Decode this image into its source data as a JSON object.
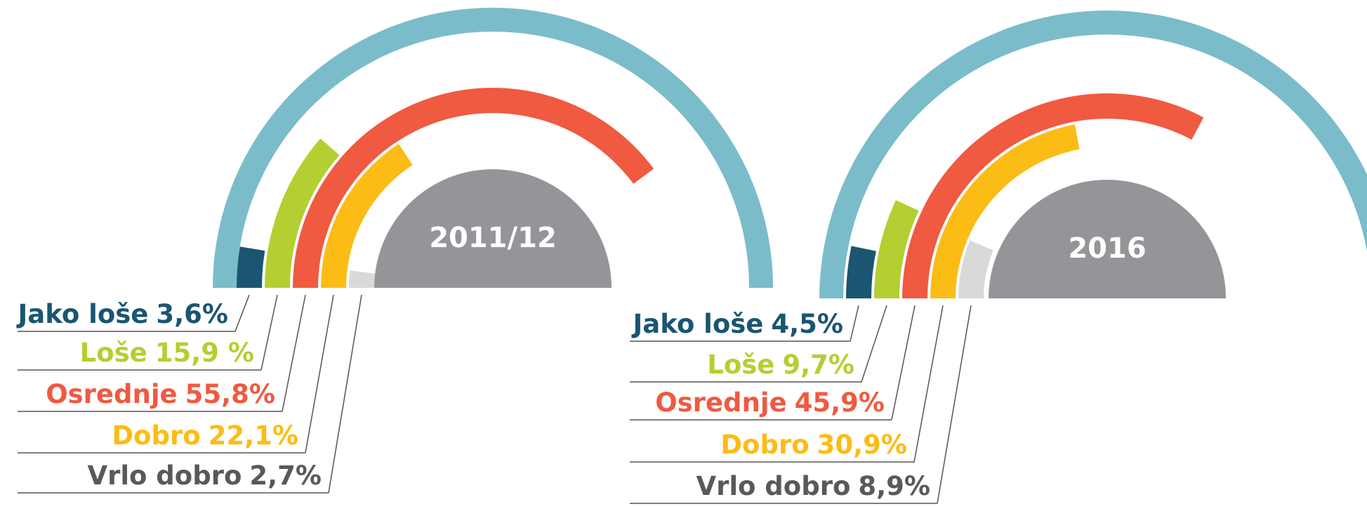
{
  "chart_data": [
    {
      "type": "radial_bar",
      "title": "2011/12",
      "categories": [
        "Jako loše",
        "Loše",
        "Osrednje",
        "Dobro",
        "Vrlo dobro"
      ],
      "values": [
        3.6,
        15.9,
        55.8,
        22.1,
        2.7
      ],
      "value_labels": [
        "3,6%",
        "15,9 %",
        "55,8%",
        "22,1%",
        "2,7%"
      ],
      "colors": [
        "#1a5571",
        "#b4cf32",
        "#ef5a41",
        "#fcbc16",
        "#d9d9d9"
      ],
      "alim": [
        0,
        70
      ]
    },
    {
      "type": "radial_bar",
      "title": "2016",
      "categories": [
        "Jako loše",
        "Loše",
        "Osrednje",
        "Dobro",
        "Vrlo dobro"
      ],
      "values": [
        4.5,
        9.7,
        45.9,
        30.9,
        8.9
      ],
      "value_labels": [
        "4,5%",
        "9,7%",
        "45,9%",
        "30,9%",
        "8,9%"
      ],
      "colors": [
        "#1a5571",
        "#b4cf32",
        "#ef5a41",
        "#fcbc16",
        "#d9d9d9"
      ],
      "alim": [
        0,
        70
      ]
    }
  ]
}
